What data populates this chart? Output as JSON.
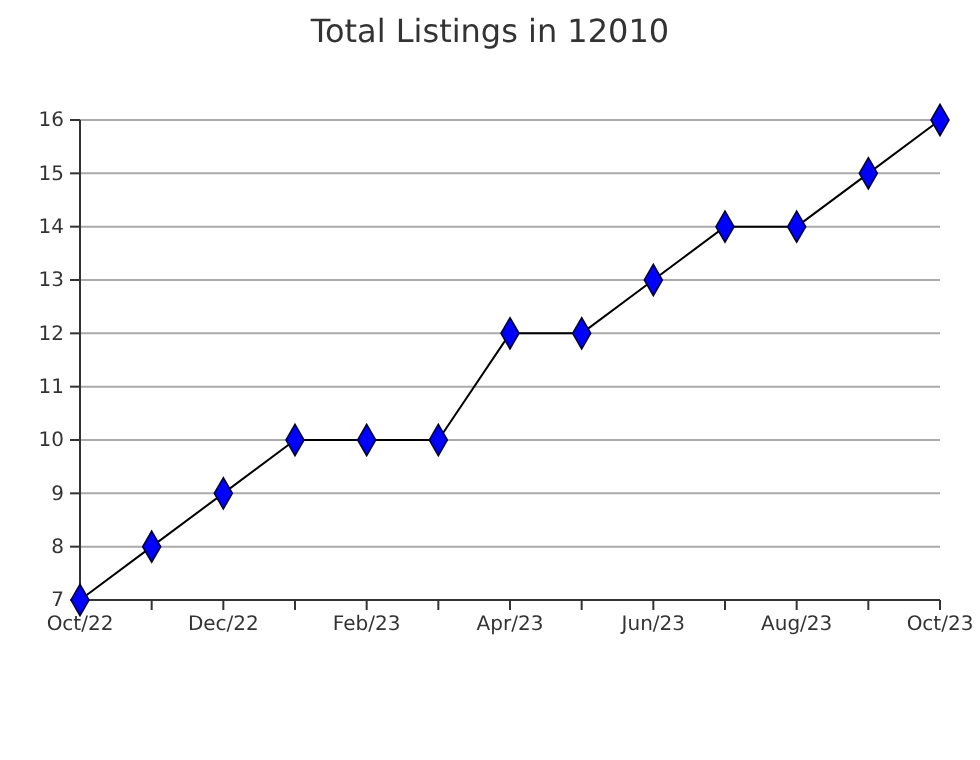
{
  "chart_data": {
    "type": "line",
    "title": "Total Listings in 12010",
    "categories": [
      "Oct/22",
      null,
      "Dec/22",
      null,
      "Feb/23",
      null,
      "Apr/23",
      null,
      "Jun/23",
      null,
      "Aug/23",
      null,
      "Oct/23"
    ],
    "series": [
      {
        "color": "#0000ff",
        "values": [
          7,
          8,
          9,
          10,
          10,
          10,
          12,
          12,
          13,
          14,
          14,
          15,
          16
        ]
      }
    ],
    "ylim": [
      7,
      16
    ],
    "yticks": [
      7,
      8,
      9,
      10,
      11,
      12,
      13,
      14,
      15,
      16
    ],
    "grid": "y",
    "marker": "diamond",
    "line_style": "solid"
  }
}
